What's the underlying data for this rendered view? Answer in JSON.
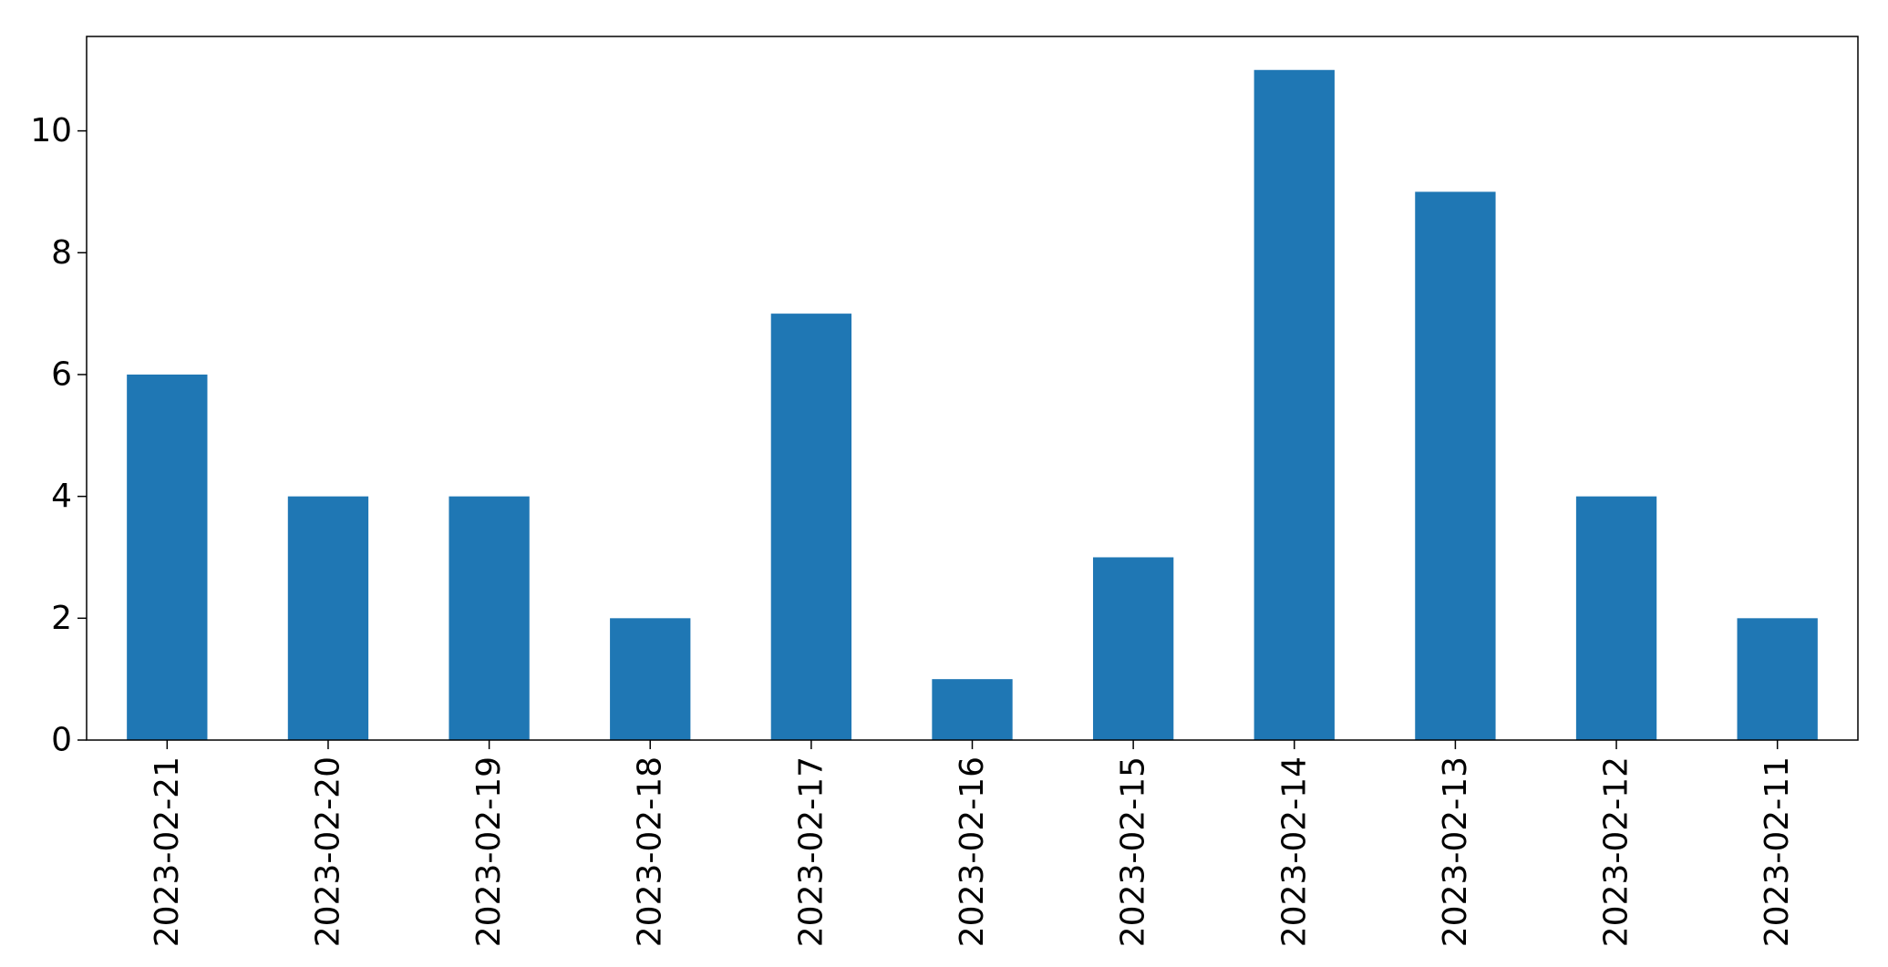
{
  "chart_data": {
    "type": "bar",
    "title": "",
    "xlabel": "",
    "ylabel": "",
    "categories": [
      "2023-02-21",
      "2023-02-20",
      "2023-02-19",
      "2023-02-18",
      "2023-02-17",
      "2023-02-16",
      "2023-02-15",
      "2023-02-14",
      "2023-02-13",
      "2023-02-12",
      "2023-02-11"
    ],
    "values": [
      6,
      4,
      4,
      2,
      7,
      1,
      3,
      11,
      9,
      4,
      2
    ],
    "ylim": [
      0,
      11.55
    ],
    "yticks": [
      "0",
      "2",
      "4",
      "6",
      "8",
      "10"
    ],
    "grid": false,
    "legend": "none",
    "bar_color": "#1f77b4",
    "axis_color": "#000000"
  }
}
